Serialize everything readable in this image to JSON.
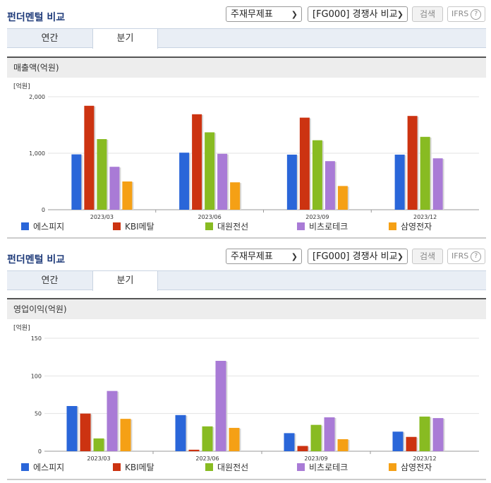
{
  "colors": {
    "에스피지": "#2a66d9",
    "KBI메탈": "#cc3311",
    "대원전선": "#88bb22",
    "비츠로테크": "#a97bd6",
    "삼영전자": "#f5a015"
  },
  "sections": [
    {
      "title": "펀더멘털 비교",
      "select1": "주재무제표",
      "select2": "[FG000] 경쟁사 비교",
      "search_label": "검색",
      "ifrs_label": "IFRS",
      "help_label": "?",
      "tabs": [
        "연간",
        "분기"
      ],
      "active_tab": "분기",
      "panel_title": "매출액(억원)"
    },
    {
      "title": "펀더멘털 비교",
      "select1": "주재무제표",
      "select2": "[FG000] 경쟁사 비교",
      "search_label": "검색",
      "ifrs_label": "IFRS",
      "help_label": "?",
      "tabs": [
        "연간",
        "분기"
      ],
      "active_tab": "분기",
      "panel_title": "영업이익(억원)"
    }
  ],
  "chart_data": [
    {
      "type": "bar",
      "unit_label": "[억원]",
      "categories": [
        "2023/03",
        "2023/06",
        "2023/09",
        "2023/12"
      ],
      "ylim": [
        0,
        2000
      ],
      "yticks": [
        "0",
        "1,000",
        "2,000"
      ],
      "ytick_values": [
        0,
        1000,
        2000
      ],
      "series": [
        {
          "name": "에스피지",
          "values": [
            980,
            1010,
            975,
            975
          ]
        },
        {
          "name": "KBI메탈",
          "values": [
            1840,
            1690,
            1630,
            1660
          ]
        },
        {
          "name": "대원전선",
          "values": [
            1250,
            1370,
            1230,
            1290
          ]
        },
        {
          "name": "비츠로테크",
          "values": [
            760,
            990,
            860,
            910
          ]
        },
        {
          "name": "삼영전자",
          "values": [
            500,
            485,
            420,
            null
          ]
        }
      ]
    },
    {
      "type": "bar",
      "unit_label": "[억원]",
      "categories": [
        "2023/03",
        "2023/06",
        "2023/09",
        "2023/12"
      ],
      "ylim": [
        0,
        150
      ],
      "yticks": [
        "0",
        "50",
        "100",
        "150"
      ],
      "ytick_values": [
        0,
        50,
        100,
        150
      ],
      "series": [
        {
          "name": "에스피지",
          "values": [
            60,
            48,
            24,
            26
          ]
        },
        {
          "name": "KBI메탈",
          "values": [
            50,
            2,
            7,
            19
          ]
        },
        {
          "name": "대원전선",
          "values": [
            17,
            33,
            35,
            46
          ]
        },
        {
          "name": "비츠로테크",
          "values": [
            80,
            120,
            45,
            44
          ]
        },
        {
          "name": "삼영전자",
          "values": [
            43,
            31,
            16,
            null
          ]
        }
      ]
    }
  ]
}
